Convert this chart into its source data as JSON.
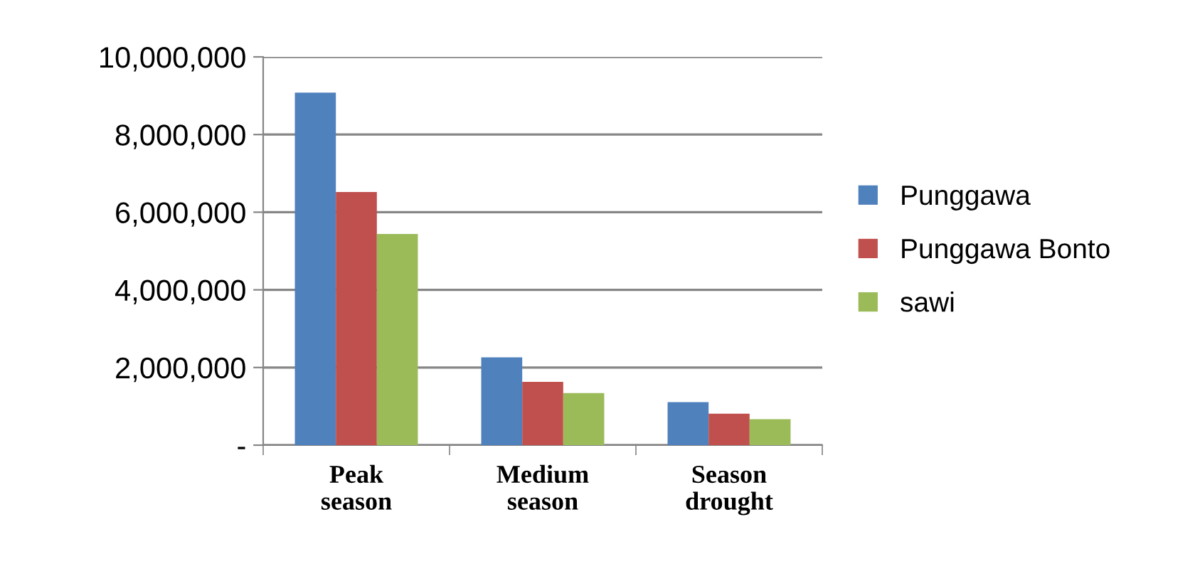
{
  "chart_data": {
    "type": "bar",
    "categories": [
      "Peak\nseason",
      "Medium\nseason",
      "Season\ndrought"
    ],
    "series": [
      {
        "name": "Punggawa",
        "color": "#4f81bd",
        "values": [
          9080000,
          2260000,
          1110000
        ]
      },
      {
        "name": "Punggawa Bonto",
        "color": "#c0504d",
        "values": [
          6520000,
          1630000,
          810000
        ]
      },
      {
        "name": "sawi",
        "color": "#9bbb59",
        "values": [
          5440000,
          1340000,
          670000
        ]
      }
    ],
    "ylim": [
      0,
      10000000
    ],
    "yticks": [
      {
        "value": 0,
        "label": "-"
      },
      {
        "value": 2000000,
        "label": "2,000,000"
      },
      {
        "value": 4000000,
        "label": "4,000,000"
      },
      {
        "value": 6000000,
        "label": "6,000,000"
      },
      {
        "value": 8000000,
        "label": "8,000,000"
      },
      {
        "value": 10000000,
        "label": "10,000,000"
      }
    ],
    "grid": "y",
    "legend": "right"
  }
}
